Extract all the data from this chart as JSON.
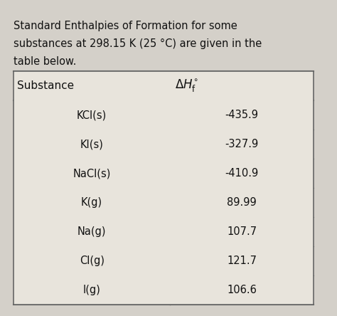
{
  "title_line1": "Standard Enthalpies of Formation for some",
  "title_line2": "substances at 298.15 K (25 °C) are given in the",
  "title_line3": "table below.",
  "col1_header": "Substance",
  "col2_header": "$\\Delta H_{\\mathrm{f}}^{\\circ}$",
  "substances": [
    "KCl(s)",
    "KI(s)",
    "NaCl(s)",
    "K(g)",
    "Na(g)",
    "Cl(g)",
    "I(g)"
  ],
  "values": [
    "-435.9",
    "-327.9",
    "-410.9",
    "89.99",
    "107.7",
    "121.7",
    "106.6"
  ],
  "bg_color": "#d4d0c9",
  "cell_color": "#e8e4dc",
  "border_color": "#666666",
  "text_color": "#111111",
  "title_fontsize": 10.5,
  "cell_fontsize": 10.5,
  "header_fontsize": 11
}
